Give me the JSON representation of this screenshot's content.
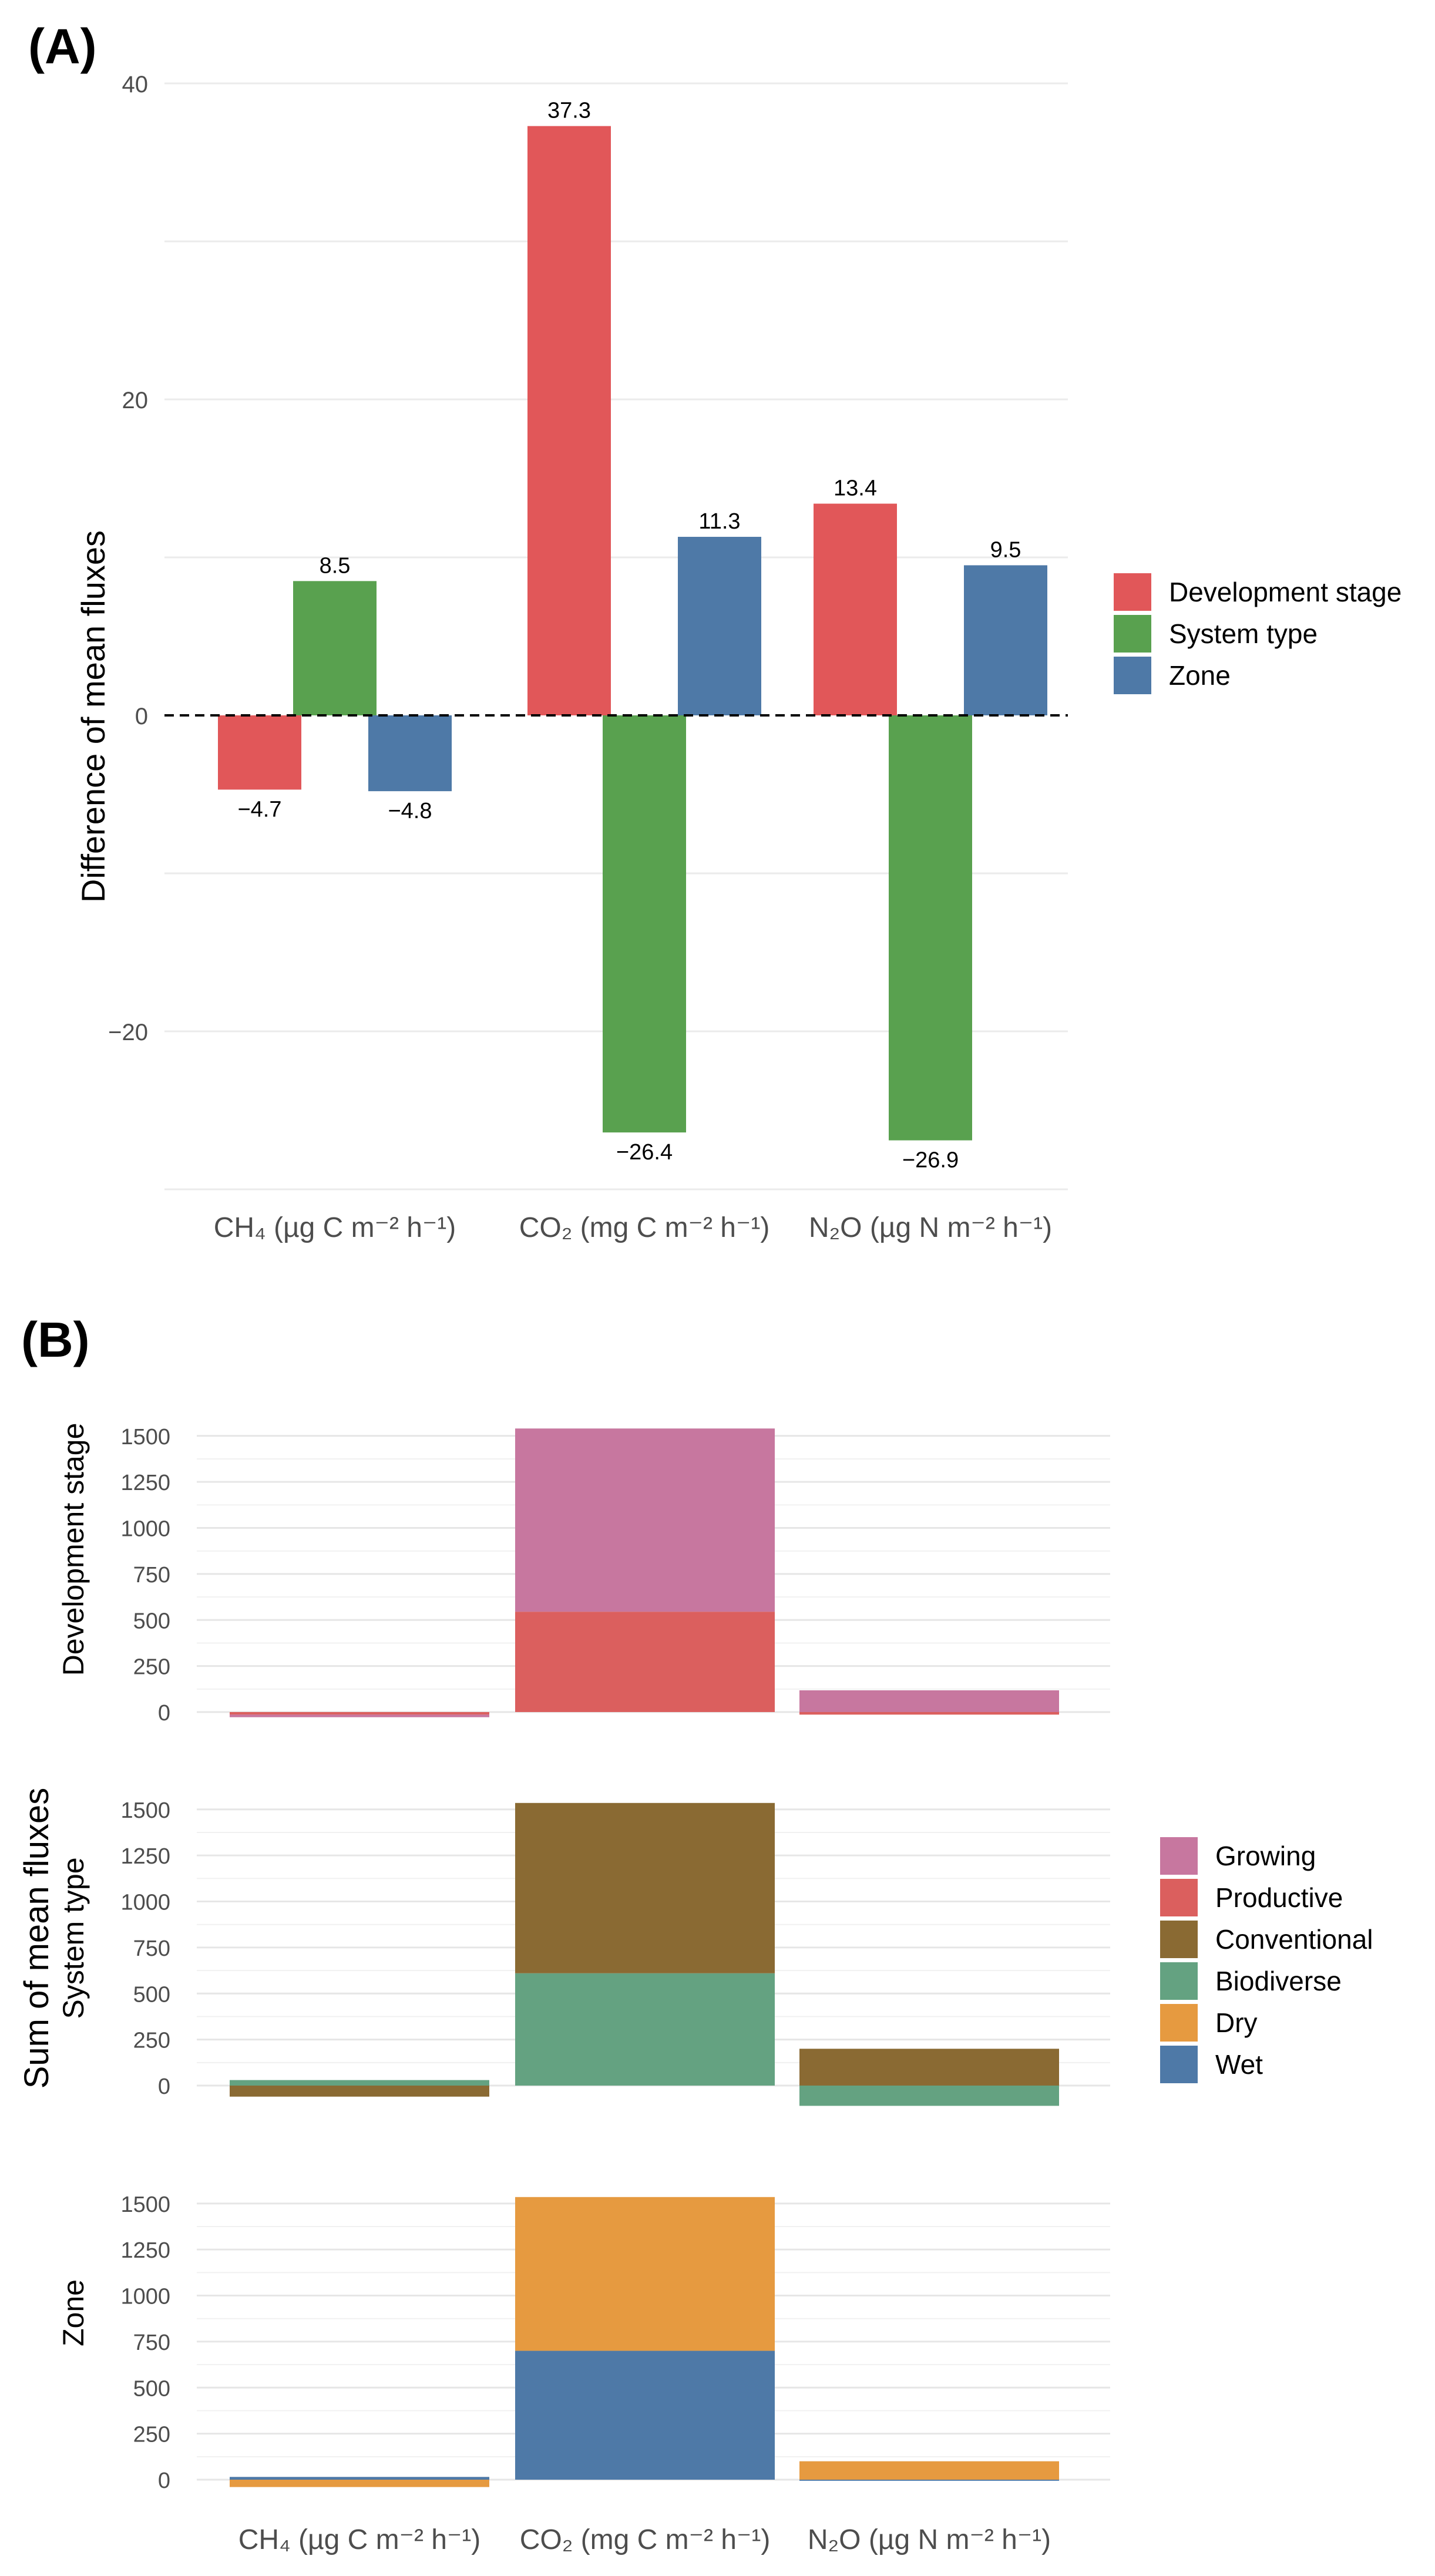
{
  "colors": {
    "Development stage": "#E15759",
    "System type": "#59A14F",
    "Zone": "#4E79A7",
    "Growing": "#C7779F",
    "Productive": "#DB5F5E",
    "Conventional": "#8A6A33",
    "Biodiverse": "#64A281",
    "Dry": "#E69A40",
    "Wet": "#4E79A7"
  },
  "chart_data": [
    {
      "panel": "(A)",
      "type": "bar",
      "categories": [
        "CH₄ (µg C m⁻² h⁻¹)",
        "CO₂ (mg C m⁻² h⁻¹)",
        "N₂O (µg N m⁻² h⁻¹)"
      ],
      "series": [
        {
          "name": "Development stage",
          "values": [
            -4.7,
            37.3,
            13.4
          ],
          "labels": [
            "−4.7",
            "37.3",
            "13.4"
          ]
        },
        {
          "name": "System type",
          "values": [
            8.5,
            -26.4,
            -26.9
          ],
          "labels": [
            "8.5",
            "−26.4",
            "−26.9"
          ]
        },
        {
          "name": "Zone",
          "values": [
            -4.8,
            11.3,
            9.5
          ],
          "labels": [
            "−4.8",
            "11.3",
            "9.5"
          ]
        }
      ],
      "ylabel": "Difference of mean fluxes",
      "xlabel": "",
      "ylim": [
        -30,
        40
      ],
      "yticks": [
        -20,
        0,
        20,
        40
      ],
      "ytick_labels": [
        "−20",
        "0",
        "20",
        "40"
      ],
      "zero_line": "dashed",
      "legend": [
        "Development stage",
        "System type",
        "Zone"
      ],
      "legend_position": "right"
    },
    {
      "panel": "(B)",
      "type": "bar",
      "stacked": true,
      "categories": [
        "CH₄ (µg C m⁻² h⁻¹)",
        "CO₂ (mg C m⁻² h⁻¹)",
        "N₂O (µg N m⁻² h⁻¹)"
      ],
      "ylabel": "Sum of mean fluxes",
      "ylim": [
        -50,
        1600
      ],
      "yticks": [
        0,
        250,
        500,
        750,
        1000,
        1250,
        1500
      ],
      "ytick_labels": [
        "0",
        "250",
        "500",
        "750",
        "1000",
        "1250",
        "1500"
      ],
      "facets": [
        {
          "name": "Development stage",
          "series": [
            {
              "name": "Productive",
              "values": [
                -14,
                545,
                -14
              ]
            },
            {
              "name": "Growing",
              "values": [
                -14,
                995,
                118
              ]
            }
          ]
        },
        {
          "name": "System type",
          "series": [
            {
              "name": "Biodiverse",
              "values": [
                30,
                610,
                -110
              ]
            },
            {
              "name": "Conventional",
              "values": [
                -60,
                925,
                200
              ]
            }
          ]
        },
        {
          "name": "Zone",
          "series": [
            {
              "name": "Wet",
              "values": [
                15,
                700,
                -6
              ]
            },
            {
              "name": "Dry",
              "values": [
                -40,
                835,
                100
              ]
            }
          ]
        }
      ],
      "legend": [
        "Growing",
        "Productive",
        "Conventional",
        "Biodiverse",
        "Dry",
        "Wet"
      ],
      "legend_position": "right"
    }
  ]
}
